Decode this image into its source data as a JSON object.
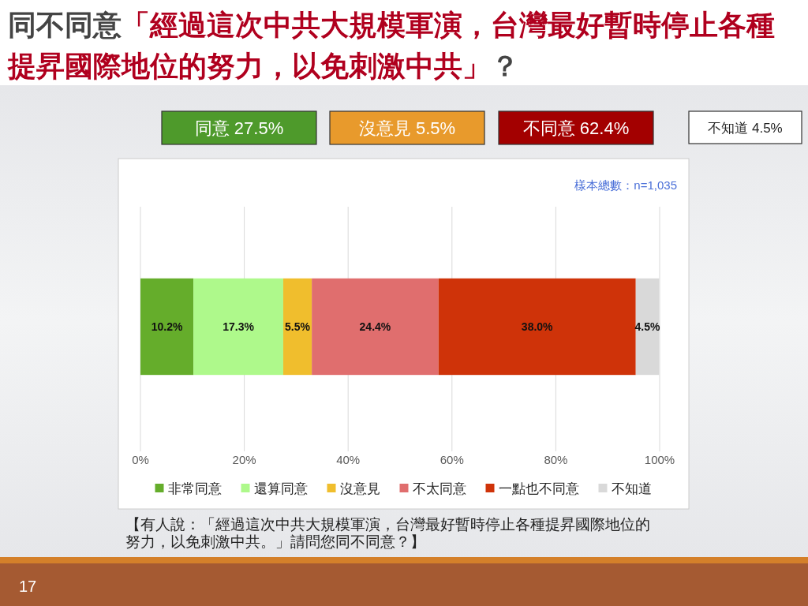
{
  "chart_data": {
    "type": "bar",
    "orientation": "horizontal",
    "stacked": true,
    "title": "同不同意「經過這次中共大規模軍演，台灣最好暫時停止各種提昇國際地位的努力，以免刺激中共」？",
    "categories": [
      null
    ],
    "series": [
      {
        "name": "非常同意",
        "color": "#65ad2b",
        "values": [
          10.2
        ],
        "value_labels": [
          "10.2%"
        ]
      },
      {
        "name": "還算同意",
        "color": "#aef98b",
        "values": [
          17.3
        ],
        "value_labels": [
          "17.3%"
        ]
      },
      {
        "name": "沒意見",
        "color": "#f0be2d",
        "values": [
          5.5
        ],
        "value_labels": [
          "5.5%"
        ]
      },
      {
        "name": "不太同意",
        "color": "#e06e6e",
        "values": [
          24.4
        ],
        "value_labels": [
          "24.4%"
        ]
      },
      {
        "name": "一點也不同意",
        "color": "#cf3309",
        "values": [
          38.0
        ],
        "value_labels": [
          "38.0%"
        ]
      },
      {
        "name": "不知道",
        "color": "#d9d9d9",
        "values": [
          4.5
        ],
        "value_labels": [
          "4.5%"
        ]
      }
    ],
    "xlim": [
      0,
      100
    ],
    "xticks": [
      {
        "value": 0,
        "label": "0%"
      },
      {
        "value": 20,
        "label": "20%"
      },
      {
        "value": 40,
        "label": "40%"
      },
      {
        "value": 60,
        "label": "60%"
      },
      {
        "value": 80,
        "label": "80%"
      },
      {
        "value": 100,
        "label": "100%"
      }
    ],
    "grid": "x",
    "legend": "bottom",
    "annotations": [
      "同意 27.5%",
      "沒意見 5.5%",
      "不同意 62.4%",
      "不知道 4.5%",
      "樣本總數：n=1,035",
      "【有人說：「經過這次中共大規模軍演，台灣最好暫時停止各種提昇國際地位的努力，以免刺激中共。」請問您同不同意？】",
      "17"
    ]
  }
}
